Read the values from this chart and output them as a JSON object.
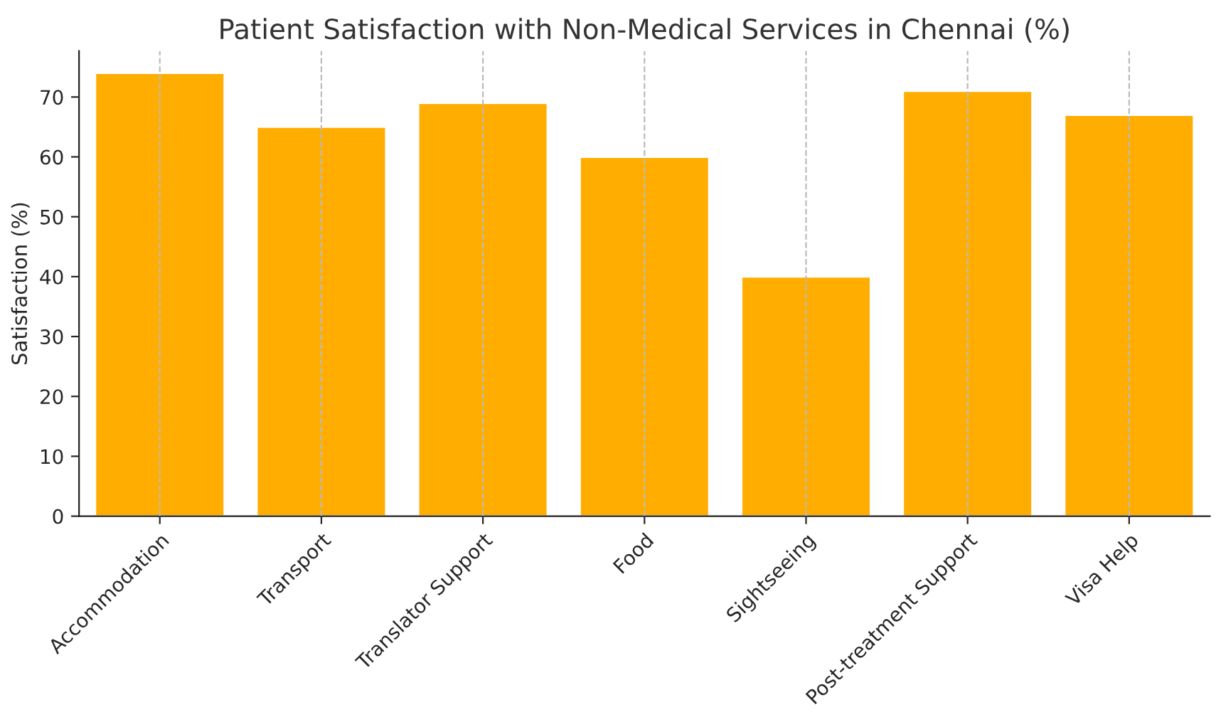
{
  "chart_data": {
    "type": "bar",
    "title": "Patient Satisfaction with Non-Medical Services in Chennai (%)",
    "ylabel": "Satisfaction (%)",
    "categories": [
      "Accommodation",
      "Transport",
      "Translator Support",
      "Food",
      "Sightseeing",
      "Post-treatment Support",
      "Visa Help"
    ],
    "values": [
      74,
      65,
      69,
      60,
      40,
      71,
      67
    ],
    "color": "#ffad00",
    "ylim": [
      0,
      77.7
    ],
    "yticks": [
      0,
      10,
      20,
      30,
      40,
      50,
      60,
      70
    ],
    "grid": "x",
    "legend": false
  }
}
